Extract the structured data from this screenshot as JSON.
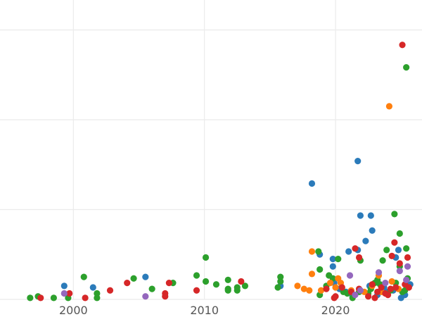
{
  "chart_data": {
    "type": "scatter",
    "title": "",
    "xlabel": "",
    "ylabel": "",
    "xlim": [
      1994.4,
      2026.6
    ],
    "ylim": [
      0,
      100
    ],
    "x_ticks": [
      2000,
      2010,
      2020
    ],
    "x_tick_labels": [
      "2000",
      "2010",
      "2020"
    ],
    "y_gridlines": [
      0,
      30,
      60,
      90
    ],
    "grid": true,
    "legend": "none",
    "series": [
      {
        "color": "#2b7bba",
        "points": [
          [
            1999.3,
            4.5
          ],
          [
            2001.5,
            4.0
          ],
          [
            2005.5,
            7.5
          ],
          [
            2015.8,
            4.5
          ],
          [
            2018.2,
            38.7
          ],
          [
            2018.8,
            15.0
          ],
          [
            2019.8,
            13.5
          ],
          [
            2019.8,
            11.0
          ],
          [
            2019.9,
            5.5
          ],
          [
            2020.3,
            3.5
          ],
          [
            2020.8,
            2.5
          ],
          [
            2021.0,
            16.0
          ],
          [
            2021.3,
            1.0
          ],
          [
            2021.7,
            16.5
          ],
          [
            2021.7,
            46.2
          ],
          [
            2021.9,
            28.0
          ],
          [
            2022.3,
            19.5
          ],
          [
            2022.6,
            4.5
          ],
          [
            2022.7,
            28.0
          ],
          [
            2022.8,
            23.0
          ],
          [
            2023.2,
            1.5
          ],
          [
            2023.7,
            4.0
          ],
          [
            2024.0,
            2.5
          ],
          [
            2024.4,
            3.0
          ],
          [
            2024.6,
            14.0
          ],
          [
            2024.8,
            16.5
          ],
          [
            2025.0,
            0.5
          ],
          [
            2025.3,
            1.5
          ],
          [
            2025.5,
            4.0
          ],
          [
            2025.7,
            5.0
          ]
        ]
      },
      {
        "color": "#2ca02c",
        "points": [
          [
            1996.7,
            0.5
          ],
          [
            1997.3,
            1.0
          ],
          [
            1998.5,
            0.5
          ],
          [
            1999.6,
            0.5
          ],
          [
            2000.8,
            7.5
          ],
          [
            2001.8,
            0.5
          ],
          [
            2001.8,
            2.0
          ],
          [
            2004.6,
            7.0
          ],
          [
            2006.0,
            3.5
          ],
          [
            2007.6,
            5.5
          ],
          [
            2009.4,
            8.0
          ],
          [
            2010.1,
            14.0
          ],
          [
            2010.1,
            6.0
          ],
          [
            2010.9,
            5.0
          ],
          [
            2011.8,
            3.0
          ],
          [
            2011.8,
            6.5
          ],
          [
            2011.8,
            3.5
          ],
          [
            2012.5,
            3.0
          ],
          [
            2012.5,
            4.0
          ],
          [
            2013.1,
            4.5
          ],
          [
            2015.6,
            4.0
          ],
          [
            2015.8,
            7.5
          ],
          [
            2015.8,
            6.0
          ],
          [
            2018.7,
            16.0
          ],
          [
            2018.8,
            10.0
          ],
          [
            2018.8,
            1.5
          ],
          [
            2019.3,
            4.5
          ],
          [
            2019.5,
            8.0
          ],
          [
            2019.8,
            7.0
          ],
          [
            2020.2,
            13.5
          ],
          [
            2020.6,
            2.5
          ],
          [
            2020.9,
            2.0
          ],
          [
            2021.3,
            0.5
          ],
          [
            2021.8,
            2.5
          ],
          [
            2021.9,
            13.0
          ],
          [
            2022.5,
            2.0
          ],
          [
            2022.7,
            3.5
          ],
          [
            2023.0,
            5.5
          ],
          [
            2023.2,
            6.5
          ],
          [
            2023.4,
            5.0
          ],
          [
            2023.6,
            13.0
          ],
          [
            2023.9,
            16.5
          ],
          [
            2024.2,
            3.0
          ],
          [
            2024.5,
            28.5
          ],
          [
            2024.6,
            5.5
          ],
          [
            2024.9,
            22.0
          ],
          [
            2024.9,
            11.0
          ],
          [
            2025.1,
            2.5
          ],
          [
            2025.3,
            3.0
          ],
          [
            2025.4,
            17.0
          ],
          [
            2025.5,
            7.0
          ],
          [
            2025.4,
            77.5
          ]
        ]
      },
      {
        "color": "#ff7f0e",
        "points": [
          [
            2017.1,
            4.5
          ],
          [
            2017.6,
            3.5
          ],
          [
            2018.0,
            3.0
          ],
          [
            2018.2,
            16.0
          ],
          [
            2018.2,
            8.5
          ],
          [
            2018.9,
            3.0
          ],
          [
            2019.6,
            5.5
          ],
          [
            2020.0,
            4.0
          ],
          [
            2020.2,
            7.0
          ],
          [
            2020.4,
            5.5
          ],
          [
            2021.2,
            3.0
          ],
          [
            2022.2,
            2.5
          ],
          [
            2022.8,
            4.5
          ],
          [
            2023.3,
            8.0
          ],
          [
            2023.5,
            2.5
          ],
          [
            2024.1,
            64.5
          ],
          [
            2024.3,
            6.0
          ],
          [
            2024.8,
            3.5
          ]
        ]
      },
      {
        "color": "#d62728",
        "points": [
          [
            1997.5,
            0.5
          ],
          [
            1999.7,
            2.0
          ],
          [
            2000.9,
            0.5
          ],
          [
            2002.8,
            3.0
          ],
          [
            2004.1,
            5.5
          ],
          [
            2007.0,
            2.0
          ],
          [
            2007.0,
            1.0
          ],
          [
            2007.3,
            5.5
          ],
          [
            2009.4,
            3.0
          ],
          [
            2012.8,
            6.0
          ],
          [
            2019.3,
            3.5
          ],
          [
            2019.9,
            0.5
          ],
          [
            2020.0,
            1.0
          ],
          [
            2020.5,
            4.0
          ],
          [
            2021.2,
            2.5
          ],
          [
            2021.5,
            17.0
          ],
          [
            2021.8,
            14.0
          ],
          [
            2021.8,
            3.5
          ],
          [
            2022.5,
            1.0
          ],
          [
            2022.8,
            5.0
          ],
          [
            2023.0,
            0.5
          ],
          [
            2023.2,
            2.5
          ],
          [
            2023.5,
            4.0
          ],
          [
            2023.8,
            2.0
          ],
          [
            2024.0,
            1.5
          ],
          [
            2024.2,
            3.5
          ],
          [
            2024.3,
            14.5
          ],
          [
            2024.5,
            19.0
          ],
          [
            2024.6,
            4.0
          ],
          [
            2024.9,
            12.0
          ],
          [
            2025.1,
            85.0
          ],
          [
            2025.3,
            5.0
          ],
          [
            2025.5,
            14.0
          ],
          [
            2025.6,
            4.0
          ]
        ]
      },
      {
        "color": "#9467bd",
        "points": [
          [
            1999.3,
            2.0
          ],
          [
            2005.5,
            1.0
          ],
          [
            2021.1,
            8.0
          ],
          [
            2021.5,
            1.5
          ],
          [
            2021.9,
            3.0
          ],
          [
            2023.3,
            9.0
          ],
          [
            2023.8,
            5.5
          ],
          [
            2024.9,
            9.5
          ],
          [
            2025.4,
            6.5
          ],
          [
            2025.5,
            11.0
          ]
        ]
      }
    ]
  }
}
